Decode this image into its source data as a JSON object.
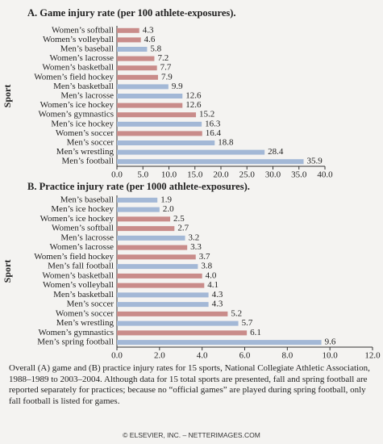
{
  "chart_data": [
    {
      "type": "barh",
      "title": "A. Game injury rate (per 100 athlete-exposures).",
      "y_label": "Sport",
      "categories": [
        "Women’s softball",
        "Women’s volleyball",
        "Men’s baseball",
        "Women’s lacrosse",
        "Women’s basketball",
        "Women’s field hockey",
        "Men’s basketball",
        "Men’s lacrosse",
        "Women’s ice hockey",
        "Women’s gymnastics",
        "Men’s ice hockey",
        "Women’s soccer",
        "Men’s soccer",
        "Men’s wrestling",
        "Men’s football"
      ],
      "values": [
        4.3,
        4.6,
        5.8,
        7.2,
        7.7,
        7.9,
        9.9,
        12.6,
        12.6,
        15.2,
        16.3,
        16.4,
        18.8,
        28.4,
        35.9
      ],
      "value_labels": [
        "4.3",
        "4.6",
        "5.8",
        "7.2",
        "7.7",
        "7.9",
        "9.9",
        "12.6",
        "12.6",
        "15.2",
        "16.3",
        "16.4",
        "18.8",
        "28.4",
        "35.9"
      ],
      "colors": [
        "#c98c8a",
        "#c98c8a",
        "#a3b8d6",
        "#c98c8a",
        "#c98c8a",
        "#c98c8a",
        "#a3b8d6",
        "#a3b8d6",
        "#c98c8a",
        "#c98c8a",
        "#a3b8d6",
        "#c98c8a",
        "#a3b8d6",
        "#a3b8d6",
        "#a3b8d6"
      ],
      "xlim": [
        0,
        40
      ],
      "xticks": [
        {
          "value": 0,
          "label": "0.0"
        },
        {
          "value": 5,
          "label": "5.0"
        },
        {
          "value": 10,
          "label": "10.0"
        },
        {
          "value": 15,
          "label": "15.0"
        },
        {
          "value": 20,
          "label": "20.0"
        },
        {
          "value": 25,
          "label": "25.0"
        },
        {
          "value": 30,
          "label": "30.0"
        },
        {
          "value": 35,
          "label": "35.0"
        },
        {
          "value": 40,
          "label": "40.0"
        }
      ]
    },
    {
      "type": "barh",
      "title": "B. Practice injury rate (per 1000 athlete-exposures).",
      "y_label": "Sport",
      "categories": [
        "Men’s baseball",
        "Men’s ice hockey",
        "Women’s ice hockey",
        "Women’s softball",
        "Men’s lacrosse",
        "Women’s lacrosse",
        "Women’s field hockey",
        "Men’s fall football",
        "Women’s basketball",
        "Women’s volleyball",
        "Men’s basketball",
        "Men’s soccer",
        "Women’s soccer",
        "Men’s wrestling",
        "Women’s gymnastics",
        "Men’s spring football"
      ],
      "values": [
        1.9,
        2.0,
        2.5,
        2.7,
        3.2,
        3.3,
        3.7,
        3.8,
        4.0,
        4.1,
        4.3,
        4.3,
        5.2,
        5.7,
        6.1,
        9.6
      ],
      "value_labels": [
        "1.9",
        "2.0",
        "2.5",
        "2.7",
        "3.2",
        "3.3",
        "3.7",
        "3.8",
        "4.0",
        "4.1",
        "4.3",
        "4.3",
        "5.2",
        "5.7",
        "6.1",
        "9.6"
      ],
      "colors": [
        "#a3b8d6",
        "#a3b8d6",
        "#c98c8a",
        "#c98c8a",
        "#a3b8d6",
        "#c98c8a",
        "#c98c8a",
        "#a3b8d6",
        "#c98c8a",
        "#c98c8a",
        "#a3b8d6",
        "#a3b8d6",
        "#c98c8a",
        "#a3b8d6",
        "#c98c8a",
        "#a3b8d6"
      ],
      "xlim": [
        0,
        12
      ],
      "xticks": [
        {
          "value": 0,
          "label": "0.0"
        },
        {
          "value": 2,
          "label": "2.0"
        },
        {
          "value": 4,
          "label": "4.0"
        },
        {
          "value": 6,
          "label": "6.0"
        },
        {
          "value": 8,
          "label": "8.0"
        },
        {
          "value": 10,
          "label": "10.0"
        },
        {
          "value": 12,
          "label": "12.0"
        }
      ]
    }
  ],
  "caption": "Overall (A) game and (B) practice injury rates for 15 sports, National Collegiate Athletic Association, 1988–1989 to 2003–2004. Although data for 15 total sports are presented, fall and spring football are reported separately for practices; because no “official games” are played during spring football, only fall football is listed for games.",
  "credit": "© ELSEVIER, INC. – NETTERIMAGES.COM"
}
